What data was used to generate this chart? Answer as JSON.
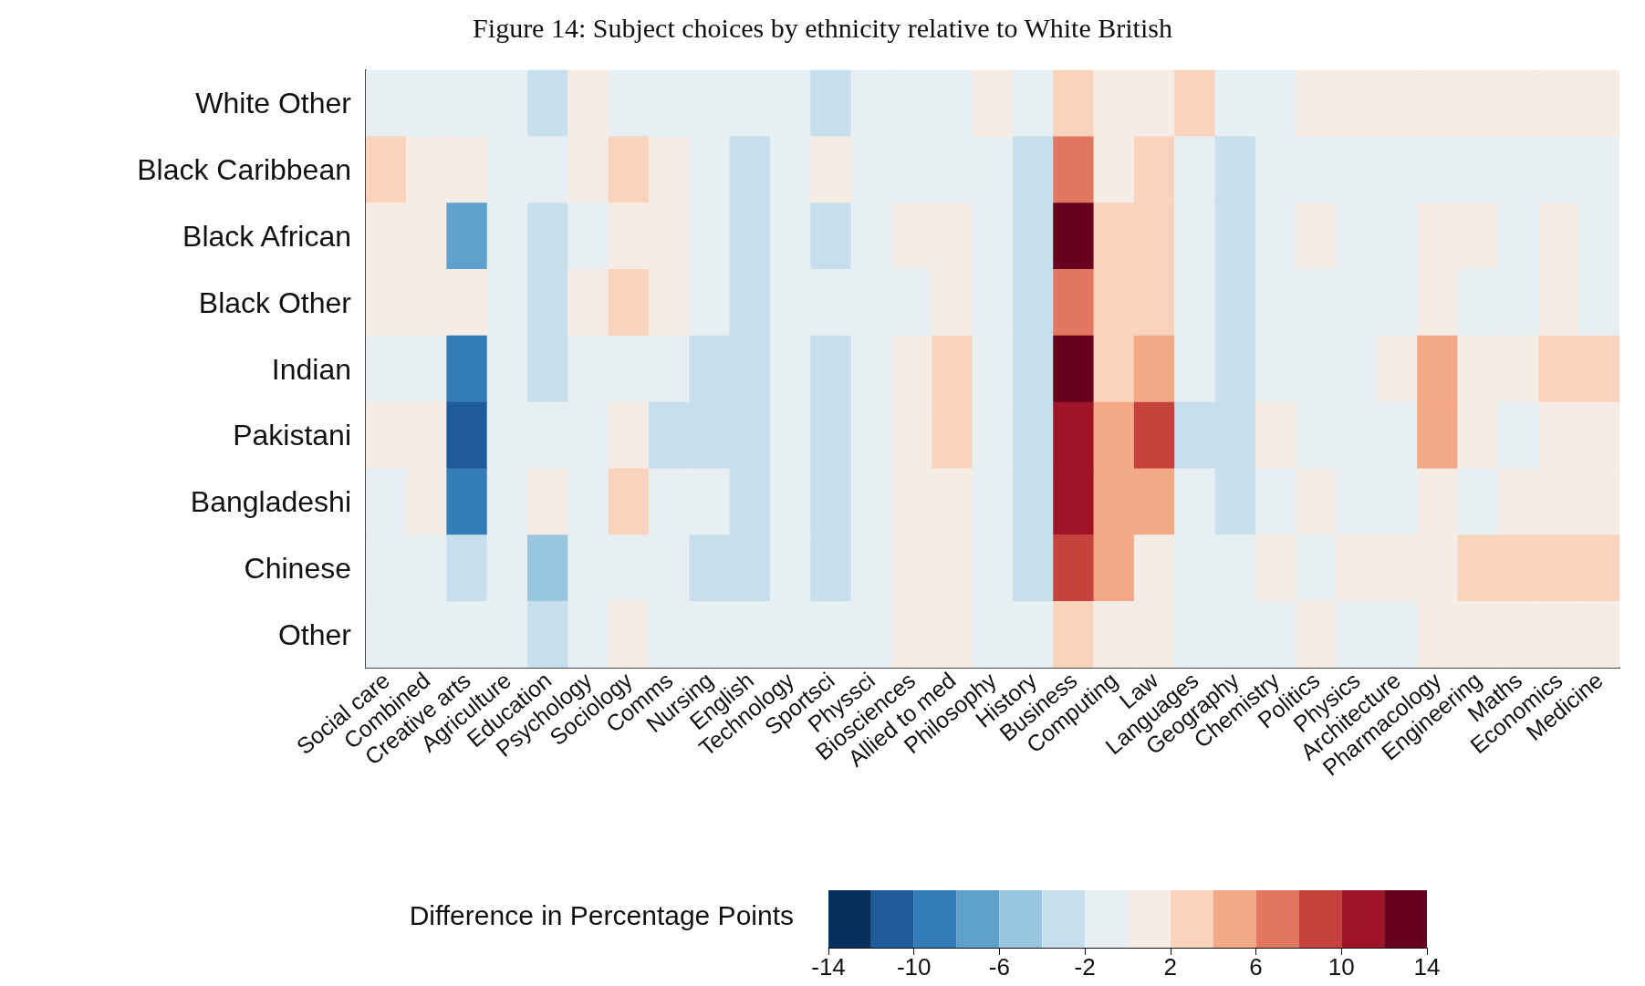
{
  "chart_data": {
    "type": "heatmap",
    "title": "Figure 14: Subject choices by ethnicity relative to White British",
    "categories": [
      "Social care",
      "Combined",
      "Creative arts",
      "Agriculture",
      "Education",
      "Psychology",
      "Sociology",
      "Comms",
      "Nursing",
      "English",
      "Technology",
      "Sportsci",
      "Physsci",
      "Biosciences",
      "Allied to med",
      "Philosophy",
      "History",
      "Business",
      "Computing",
      "Law",
      "Languages",
      "Geography",
      "Chemistry",
      "Politics",
      "Physics",
      "Architecture",
      "Pharmacology",
      "Engineering",
      "Maths",
      "Economics",
      "Medicine"
    ],
    "y_categories": [
      "White Other",
      "Black Caribbean",
      "Black African",
      "Black Other",
      "Indian",
      "Pakistani",
      "Bangladeshi",
      "Chinese",
      "Other"
    ],
    "cells": [
      [
        -1,
        -1,
        -1,
        -1,
        -3,
        1,
        -1,
        -1,
        -1,
        -1,
        -1,
        -3,
        -1,
        -1,
        -1,
        1,
        -1,
        3,
        1,
        1,
        3,
        -1,
        -1,
        1,
        1,
        1,
        1,
        1,
        1,
        1,
        1
      ],
      [
        3,
        1,
        1,
        -1,
        -1,
        1,
        3,
        1,
        -1,
        -3,
        -1,
        1,
        -1,
        -1,
        -1,
        -1,
        -3,
        7,
        1,
        3,
        -1,
        -3,
        -1,
        -1,
        -1,
        -1,
        -1,
        -1,
        -1,
        -1,
        -1
      ],
      [
        1,
        1,
        -7,
        -1,
        -3,
        -1,
        1,
        1,
        -1,
        -3,
        -1,
        -3,
        -1,
        1,
        1,
        -1,
        -3,
        13,
        3,
        3,
        -1,
        -3,
        -1,
        1,
        -1,
        -1,
        1,
        1,
        -1,
        1,
        -1
      ],
      [
        1,
        1,
        1,
        -1,
        -3,
        1,
        3,
        1,
        -1,
        -3,
        -1,
        -1,
        -1,
        -1,
        1,
        -1,
        -3,
        7,
        3,
        3,
        -1,
        -3,
        -1,
        -1,
        -1,
        -1,
        1,
        -1,
        -1,
        1,
        -1
      ],
      [
        -1,
        -1,
        -9,
        -1,
        -3,
        -1,
        -1,
        -1,
        -3,
        -3,
        -1,
        -3,
        -1,
        1,
        3,
        -1,
        -3,
        13,
        3,
        5,
        -1,
        -3,
        -1,
        -1,
        -1,
        1,
        5,
        1,
        1,
        3,
        3
      ],
      [
        1,
        1,
        -11,
        -1,
        -1,
        -1,
        1,
        -3,
        -3,
        -3,
        -1,
        -3,
        -1,
        1,
        3,
        -1,
        -3,
        11,
        5,
        9,
        -3,
        -3,
        1,
        -1,
        -1,
        -1,
        5,
        1,
        -1,
        1,
        1
      ],
      [
        -1,
        1,
        -9,
        -1,
        1,
        -1,
        3,
        -1,
        -1,
        -3,
        -1,
        -3,
        -1,
        1,
        1,
        -1,
        -3,
        11,
        5,
        5,
        -1,
        -3,
        -1,
        1,
        -1,
        -1,
        1,
        -1,
        1,
        1,
        1
      ],
      [
        -1,
        -1,
        -3,
        -1,
        -5,
        -1,
        -1,
        -1,
        -3,
        -3,
        -1,
        -3,
        -1,
        1,
        1,
        -1,
        -3,
        9,
        5,
        1,
        -1,
        -1,
        1,
        -1,
        1,
        1,
        1,
        3,
        3,
        3,
        3
      ],
      [
        -1,
        -1,
        -1,
        -1,
        -3,
        -1,
        1,
        -1,
        -1,
        -1,
        -1,
        -1,
        -1,
        1,
        1,
        -1,
        -1,
        3,
        1,
        1,
        -1,
        -1,
        -1,
        1,
        -1,
        -1,
        1,
        1,
        1,
        1,
        1
      ]
    ],
    "clim": [
      -14,
      14
    ],
    "cticks": [
      -14,
      -10,
      -6,
      -2,
      2,
      6,
      10,
      14
    ],
    "clabel": "Difference in Percentage Points"
  }
}
